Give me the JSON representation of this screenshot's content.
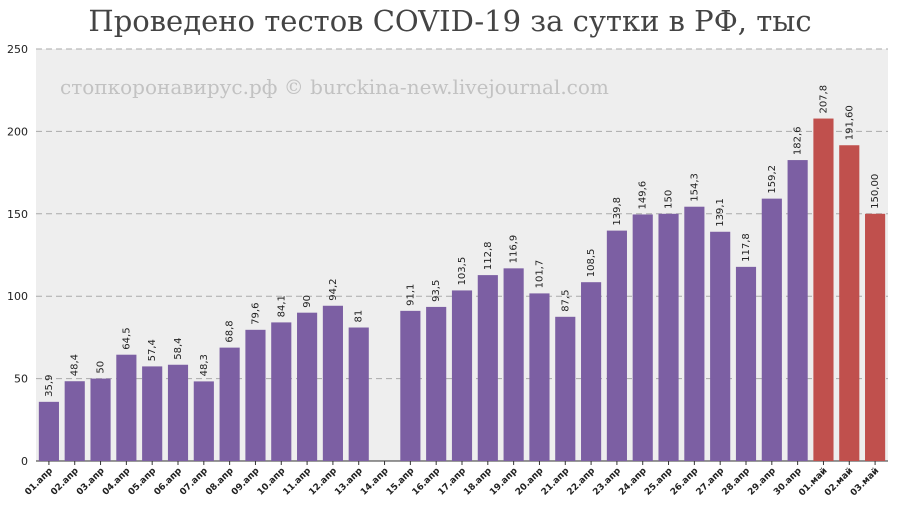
{
  "chart_data": {
    "type": "bar",
    "title": "Проведено тестов COVID-19 за сутки в РФ, тыс",
    "watermark": "стопкоронавирус.рф © burckina-new.livejournal.com",
    "xlabel": "",
    "ylabel": "",
    "ylim": [
      0,
      250
    ],
    "yticks": [
      0,
      50,
      100,
      150,
      200,
      250
    ],
    "grid": true,
    "legend": false,
    "colors": {
      "base": "#7c5fa3",
      "highlight": "#c0504d",
      "plot_bg": "#eeeeee",
      "grid": "#aaaaaa"
    },
    "categories": [
      "01.апр",
      "02.апр",
      "03.апр",
      "04.апр",
      "05.апр",
      "06.апр",
      "07.апр",
      "08.апр",
      "09.апр",
      "10.апр",
      "11.апр",
      "12.апр",
      "13.апр",
      "14.апр",
      "15.апр",
      "16.апр",
      "17.апр",
      "18.апр",
      "19.апр",
      "20.апр",
      "21.апр",
      "22.апр",
      "23.апр",
      "24.апр",
      "25.апр",
      "26.апр",
      "27.апр",
      "28.апр",
      "29.апр",
      "30.апр",
      "01.май",
      "02.май",
      "03.май"
    ],
    "values": [
      35.9,
      48.4,
      50,
      64.5,
      57.4,
      58.4,
      48.3,
      68.8,
      79.6,
      84.1,
      90,
      94.2,
      81,
      null,
      91.1,
      93.5,
      103.5,
      112.8,
      116.9,
      101.7,
      87.5,
      108.5,
      139.8,
      149.6,
      150,
      154.3,
      139.1,
      117.8,
      159.2,
      182.6,
      207.8,
      191.6,
      150.0
    ],
    "labels": [
      "35,9",
      "48,4",
      "50",
      "64,5",
      "57,4",
      "58,4",
      "48,3",
      "68,8",
      "79,6",
      "84,1",
      "90",
      "94,2",
      "81",
      "",
      "91,1",
      "93,5",
      "103,5",
      "112,8",
      "116,9",
      "101,7",
      "87,5",
      "108,5",
      "139,8",
      "149,6",
      "150",
      "154,3",
      "139,1",
      "117,8",
      "159,2",
      "182,6",
      "207,8",
      "191,60",
      "150,00"
    ],
    "highlight": [
      false,
      false,
      false,
      false,
      false,
      false,
      false,
      false,
      false,
      false,
      false,
      false,
      false,
      false,
      false,
      false,
      false,
      false,
      false,
      false,
      false,
      false,
      false,
      false,
      false,
      false,
      false,
      false,
      false,
      false,
      true,
      true,
      true
    ]
  }
}
